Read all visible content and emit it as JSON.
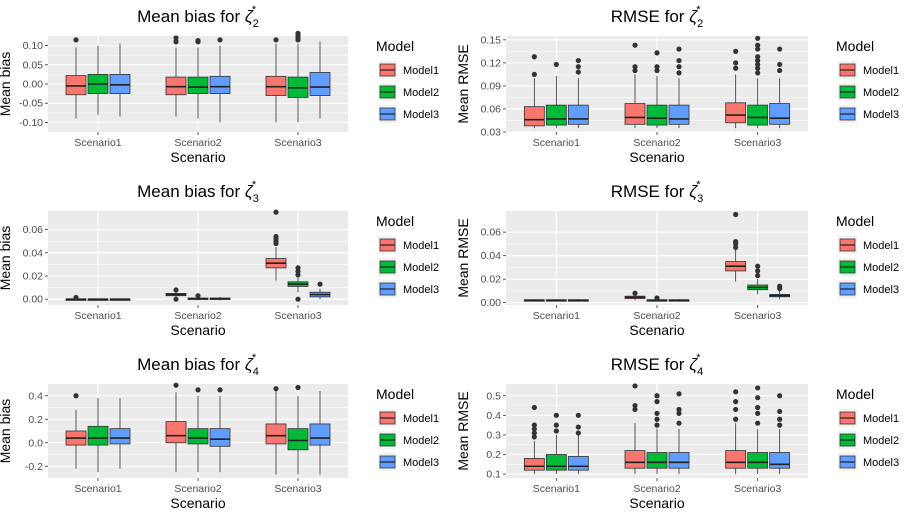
{
  "legend": {
    "title": "Model",
    "items": [
      "Model1",
      "Model2",
      "Model3"
    ]
  },
  "colors": {
    "Model1": "#F8766D",
    "Model2": "#00BA38",
    "Model3": "#619CFF",
    "panel": "#EBEBEB",
    "grid": "#FFFFFF",
    "point": "#333333"
  },
  "chart_data": [
    {
      "type": "boxplot",
      "id": "p1",
      "title_prefix": "Mean bias for ",
      "zeta": "ζ",
      "sub": "2",
      "sup": "*",
      "xlabel": "Scenario",
      "ylabel": "Mean bias",
      "ylim": [
        -0.125,
        0.125
      ],
      "yticks": [
        -0.1,
        -0.05,
        0.0,
        0.05,
        0.1
      ],
      "yticklabels": [
        "-0.10",
        "-0.05",
        "0.00",
        "0.05",
        "0.10"
      ],
      "categories": [
        "Scenario1",
        "Scenario2",
        "Scenario3"
      ],
      "series": [
        {
          "name": "Model1",
          "boxes": [
            {
              "min": -0.09,
              "q1": -0.028,
              "median": -0.005,
              "q3": 0.022,
              "max": 0.095,
              "outliers": [
                0.115
              ]
            },
            {
              "min": -0.085,
              "q1": -0.028,
              "median": -0.007,
              "q3": 0.018,
              "max": 0.095,
              "outliers": [
                0.11,
                0.12
              ]
            },
            {
              "min": -0.1,
              "q1": -0.03,
              "median": -0.007,
              "q3": 0.02,
              "max": 0.105,
              "outliers": [
                0.115
              ]
            }
          ]
        },
        {
          "name": "Model2",
          "boxes": [
            {
              "min": -0.08,
              "q1": -0.025,
              "median": 0.0,
              "q3": 0.025,
              "max": 0.1,
              "outliers": []
            },
            {
              "min": -0.09,
              "q1": -0.025,
              "median": -0.008,
              "q3": 0.018,
              "max": 0.095,
              "outliers": [
                0.11,
                0.113
              ]
            },
            {
              "min": -0.1,
              "q1": -0.035,
              "median": -0.01,
              "q3": 0.018,
              "max": 0.105,
              "outliers": [
                0.115,
                0.122,
                0.128,
                0.132
              ]
            }
          ]
        },
        {
          "name": "Model3",
          "boxes": [
            {
              "min": -0.085,
              "q1": -0.025,
              "median": -0.002,
              "q3": 0.025,
              "max": 0.105,
              "outliers": []
            },
            {
              "min": -0.1,
              "q1": -0.025,
              "median": -0.007,
              "q3": 0.02,
              "max": 0.1,
              "outliers": [
                0.115
              ]
            },
            {
              "min": -0.09,
              "q1": -0.03,
              "median": -0.008,
              "q3": 0.03,
              "max": 0.11,
              "outliers": []
            }
          ]
        }
      ]
    },
    {
      "type": "boxplot",
      "id": "p2",
      "title_prefix": "RMSE for ",
      "zeta": "ζ",
      "sub": "2",
      "sup": "*",
      "xlabel": "Scenario",
      "ylabel": "Mean RMSE",
      "ylim": [
        0.03,
        0.155
      ],
      "yticks": [
        0.03,
        0.06,
        0.09,
        0.12,
        0.15
      ],
      "yticklabels": [
        "0.03",
        "0.06",
        "0.09",
        "0.12",
        "0.15"
      ],
      "categories": [
        "Scenario1",
        "Scenario2",
        "Scenario3"
      ],
      "series": [
        {
          "name": "Model1",
          "boxes": [
            {
              "min": 0.035,
              "q1": 0.038,
              "median": 0.046,
              "q3": 0.063,
              "max": 0.1,
              "outliers": [
                0.105,
                0.128
              ]
            },
            {
              "min": 0.035,
              "q1": 0.04,
              "median": 0.049,
              "q3": 0.067,
              "max": 0.105,
              "outliers": [
                0.11,
                0.115,
                0.143
              ]
            },
            {
              "min": 0.035,
              "q1": 0.042,
              "median": 0.052,
              "q3": 0.068,
              "max": 0.105,
              "outliers": [
                0.113,
                0.12,
                0.135
              ]
            }
          ]
        },
        {
          "name": "Model2",
          "boxes": [
            {
              "min": 0.035,
              "q1": 0.039,
              "median": 0.047,
              "q3": 0.065,
              "max": 0.103,
              "outliers": [
                0.118
              ]
            },
            {
              "min": 0.035,
              "q1": 0.039,
              "median": 0.048,
              "q3": 0.065,
              "max": 0.103,
              "outliers": [
                0.11,
                0.115,
                0.133
              ]
            },
            {
              "min": 0.035,
              "q1": 0.039,
              "median": 0.049,
              "q3": 0.065,
              "max": 0.1,
              "outliers": [
                0.107,
                0.113,
                0.118,
                0.123,
                0.128,
                0.138,
                0.143,
                0.152
              ]
            }
          ]
        },
        {
          "name": "Model3",
          "boxes": [
            {
              "min": 0.035,
              "q1": 0.04,
              "median": 0.047,
              "q3": 0.065,
              "max": 0.1,
              "outliers": [
                0.108,
                0.115,
                0.123
              ]
            },
            {
              "min": 0.035,
              "q1": 0.04,
              "median": 0.047,
              "q3": 0.065,
              "max": 0.1,
              "outliers": [
                0.107,
                0.115,
                0.123,
                0.138
              ]
            },
            {
              "min": 0.035,
              "q1": 0.04,
              "median": 0.048,
              "q3": 0.067,
              "max": 0.1,
              "outliers": [
                0.11,
                0.118,
                0.138
              ]
            }
          ]
        }
      ]
    },
    {
      "type": "boxplot",
      "id": "p3",
      "title_prefix": "Mean bias for ",
      "zeta": "ζ",
      "sub": "3",
      "sup": "*",
      "xlabel": "Scenario",
      "ylabel": "Mean bias",
      "ylim": [
        -0.005,
        0.076
      ],
      "yticks": [
        0.0,
        0.02,
        0.04,
        0.06
      ],
      "yticklabels": [
        "0.00",
        "0.02",
        "0.04",
        "0.06"
      ],
      "categories": [
        "Scenario1",
        "Scenario2",
        "Scenario3"
      ],
      "series": [
        {
          "name": "Model1",
          "boxes": [
            {
              "min": -0.0005,
              "q1": -0.0002,
              "median": 0.0,
              "q3": 0.0002,
              "max": 0.0005,
              "outliers": [
                0.0015
              ]
            },
            {
              "min": 0.001,
              "q1": 0.003,
              "median": 0.004,
              "q3": 0.005,
              "max": 0.007,
              "outliers": [
                0.0,
                0.008
              ]
            },
            {
              "min": 0.016,
              "q1": 0.027,
              "median": 0.031,
              "q3": 0.035,
              "max": 0.045,
              "outliers": [
                0.048,
                0.05,
                0.052,
                0.054,
                0.075
              ]
            }
          ]
        },
        {
          "name": "Model2",
          "boxes": [
            {
              "min": -0.0005,
              "q1": -0.0002,
              "median": 0.0,
              "q3": 0.0002,
              "max": 0.0005,
              "outliers": []
            },
            {
              "min": -0.001,
              "q1": 0.0,
              "median": 0.0005,
              "q3": 0.001,
              "max": 0.002,
              "outliers": [
                0.003
              ]
            },
            {
              "min": 0.006,
              "q1": 0.011,
              "median": 0.013,
              "q3": 0.015,
              "max": 0.02,
              "outliers": [
                0.0,
                0.021,
                0.024,
                0.027
              ]
            }
          ]
        },
        {
          "name": "Model3",
          "boxes": [
            {
              "min": -0.0005,
              "q1": -0.0002,
              "median": 0.0,
              "q3": 0.0002,
              "max": 0.0005,
              "outliers": []
            },
            {
              "min": -0.001,
              "q1": 0.0,
              "median": 0.0005,
              "q3": 0.001,
              "max": 0.002,
              "outliers": []
            },
            {
              "min": 0.0,
              "q1": 0.002,
              "median": 0.004,
              "q3": 0.006,
              "max": 0.009,
              "outliers": [
                0.013
              ]
            }
          ]
        }
      ]
    },
    {
      "type": "boxplot",
      "id": "p4",
      "title_prefix": "RMSE for ",
      "zeta": "ζ",
      "sub": "3",
      "sup": "*",
      "xlabel": "Scenario",
      "ylabel": "Mean RMSE",
      "ylim": [
        -0.002,
        0.078
      ],
      "yticks": [
        0.0,
        0.02,
        0.04,
        0.06
      ],
      "yticklabels": [
        "0.00",
        "0.02",
        "0.04",
        "0.06"
      ],
      "categories": [
        "Scenario1",
        "Scenario2",
        "Scenario3"
      ],
      "series": [
        {
          "name": "Model1",
          "boxes": [
            {
              "min": 0.001,
              "q1": 0.0015,
              "median": 0.002,
              "q3": 0.0025,
              "max": 0.003,
              "outliers": []
            },
            {
              "min": 0.002,
              "q1": 0.0035,
              "median": 0.0045,
              "q3": 0.0055,
              "max": 0.007,
              "outliers": [
                0.008
              ]
            },
            {
              "min": 0.018,
              "q1": 0.027,
              "median": 0.031,
              "q3": 0.035,
              "max": 0.045,
              "outliers": [
                0.047,
                0.05,
                0.052,
                0.075
              ]
            }
          ]
        },
        {
          "name": "Model2",
          "boxes": [
            {
              "min": 0.001,
              "q1": 0.0015,
              "median": 0.002,
              "q3": 0.0025,
              "max": 0.003,
              "outliers": []
            },
            {
              "min": 0.001,
              "q1": 0.0015,
              "median": 0.002,
              "q3": 0.0025,
              "max": 0.003,
              "outliers": [
                0.004
              ]
            },
            {
              "min": 0.007,
              "q1": 0.011,
              "median": 0.013,
              "q3": 0.015,
              "max": 0.02,
              "outliers": [
                0.023,
                0.027,
                0.031
              ]
            }
          ]
        },
        {
          "name": "Model3",
          "boxes": [
            {
              "min": 0.001,
              "q1": 0.0015,
              "median": 0.002,
              "q3": 0.0025,
              "max": 0.003,
              "outliers": []
            },
            {
              "min": 0.001,
              "q1": 0.0015,
              "median": 0.002,
              "q3": 0.0025,
              "max": 0.003,
              "outliers": []
            },
            {
              "min": 0.003,
              "q1": 0.005,
              "median": 0.006,
              "q3": 0.007,
              "max": 0.01,
              "outliers": [
                0.012,
                0.014
              ]
            }
          ]
        }
      ]
    },
    {
      "type": "boxplot",
      "id": "p5",
      "title_prefix": "Mean bias for ",
      "zeta": "ζ",
      "sub": "4",
      "sup": "*",
      "xlabel": "Scenario",
      "ylabel": "Mean bias",
      "ylim": [
        -0.3,
        0.5
      ],
      "yticks": [
        -0.2,
        0.0,
        0.2,
        0.4
      ],
      "yticklabels": [
        "-0.2",
        "0.0",
        "0.2",
        "0.4"
      ],
      "categories": [
        "Scenario1",
        "Scenario2",
        "Scenario3"
      ],
      "series": [
        {
          "name": "Model1",
          "boxes": [
            {
              "min": -0.22,
              "q1": -0.02,
              "median": 0.04,
              "q3": 0.1,
              "max": 0.28,
              "outliers": [
                0.4
              ]
            },
            {
              "min": -0.25,
              "q1": 0.0,
              "median": 0.06,
              "q3": 0.18,
              "max": 0.43,
              "outliers": [
                0.49
              ]
            },
            {
              "min": -0.27,
              "q1": -0.01,
              "median": 0.06,
              "q3": 0.16,
              "max": 0.44,
              "outliers": [
                0.46
              ]
            }
          ]
        },
        {
          "name": "Model2",
          "boxes": [
            {
              "min": -0.25,
              "q1": -0.02,
              "median": 0.04,
              "q3": 0.14,
              "max": 0.38,
              "outliers": []
            },
            {
              "min": -0.25,
              "q1": -0.01,
              "median": 0.04,
              "q3": 0.12,
              "max": 0.4,
              "outliers": [
                0.45
              ]
            },
            {
              "min": -0.27,
              "q1": -0.06,
              "median": 0.02,
              "q3": 0.12,
              "max": 0.4,
              "outliers": [
                0.47
              ]
            }
          ]
        },
        {
          "name": "Model3",
          "boxes": [
            {
              "min": -0.22,
              "q1": -0.01,
              "median": 0.04,
              "q3": 0.12,
              "max": 0.38,
              "outliers": []
            },
            {
              "min": -0.25,
              "q1": -0.03,
              "median": 0.03,
              "q3": 0.12,
              "max": 0.4,
              "outliers": [
                0.45
              ]
            },
            {
              "min": -0.27,
              "q1": -0.02,
              "median": 0.04,
              "q3": 0.16,
              "max": 0.44,
              "outliers": []
            }
          ]
        }
      ]
    },
    {
      "type": "boxplot",
      "id": "p6",
      "title_prefix": "RMSE for ",
      "zeta": "ζ",
      "sub": "4",
      "sup": "*",
      "xlabel": "Scenario",
      "ylabel": "Mean RMSE",
      "ylim": [
        0.08,
        0.56
      ],
      "yticks": [
        0.1,
        0.2,
        0.3,
        0.4,
        0.5
      ],
      "yticklabels": [
        "0.1",
        "0.2",
        "0.3",
        "0.4",
        "0.5"
      ],
      "categories": [
        "Scenario1",
        "Scenario2",
        "Scenario3"
      ],
      "series": [
        {
          "name": "Model1",
          "boxes": [
            {
              "min": 0.1,
              "q1": 0.12,
              "median": 0.14,
              "q3": 0.18,
              "max": 0.27,
              "outliers": [
                0.29,
                0.31,
                0.33,
                0.35,
                0.44
              ]
            },
            {
              "min": 0.1,
              "q1": 0.13,
              "median": 0.16,
              "q3": 0.22,
              "max": 0.36,
              "outliers": [
                0.43,
                0.45,
                0.55
              ]
            },
            {
              "min": 0.1,
              "q1": 0.13,
              "median": 0.16,
              "q3": 0.22,
              "max": 0.36,
              "outliers": [
                0.38,
                0.43,
                0.47,
                0.52
              ]
            }
          ]
        },
        {
          "name": "Model2",
          "boxes": [
            {
              "min": 0.1,
              "q1": 0.12,
              "median": 0.14,
              "q3": 0.2,
              "max": 0.3,
              "outliers": [
                0.32,
                0.35,
                0.4
              ]
            },
            {
              "min": 0.1,
              "q1": 0.13,
              "median": 0.16,
              "q3": 0.21,
              "max": 0.33,
              "outliers": [
                0.35,
                0.38,
                0.41,
                0.47,
                0.5
              ]
            },
            {
              "min": 0.1,
              "q1": 0.13,
              "median": 0.16,
              "q3": 0.21,
              "max": 0.33,
              "outliers": [
                0.36,
                0.41,
                0.44,
                0.49,
                0.54
              ]
            }
          ]
        },
        {
          "name": "Model3",
          "boxes": [
            {
              "min": 0.1,
              "q1": 0.12,
              "median": 0.14,
              "q3": 0.19,
              "max": 0.3,
              "outliers": [
                0.31,
                0.34,
                0.4
              ]
            },
            {
              "min": 0.1,
              "q1": 0.13,
              "median": 0.16,
              "q3": 0.21,
              "max": 0.33,
              "outliers": [
                0.36,
                0.41,
                0.43,
                0.51
              ]
            },
            {
              "min": 0.1,
              "q1": 0.13,
              "median": 0.15,
              "q3": 0.21,
              "max": 0.33,
              "outliers": [
                0.35,
                0.38,
                0.42,
                0.5
              ]
            }
          ]
        }
      ]
    }
  ]
}
